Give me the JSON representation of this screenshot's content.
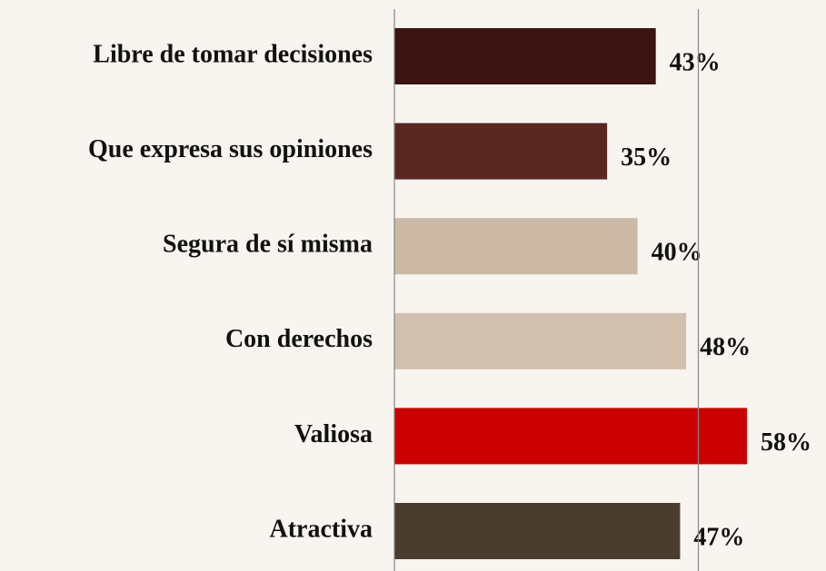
{
  "chart_data": {
    "type": "hbar",
    "categories": [
      "Libre de tomar decisiones",
      "Que expresa sus opiniones",
      "Segura de sí misma",
      "Con derechos",
      "Valiosa",
      "Atractiva"
    ],
    "values": [
      43,
      35,
      40,
      48,
      58,
      47
    ],
    "value_labels": [
      "43%",
      "35%",
      "40%",
      "48%",
      "58%",
      "47%"
    ],
    "colors": [
      "#3a1512",
      "#5a2621",
      "#cbb9a5",
      "#d1c0ad",
      "#cc0000",
      "#4a3d30"
    ],
    "xlim": [
      0,
      71
    ],
    "xticks": [
      0,
      50
    ],
    "grid": true
  }
}
